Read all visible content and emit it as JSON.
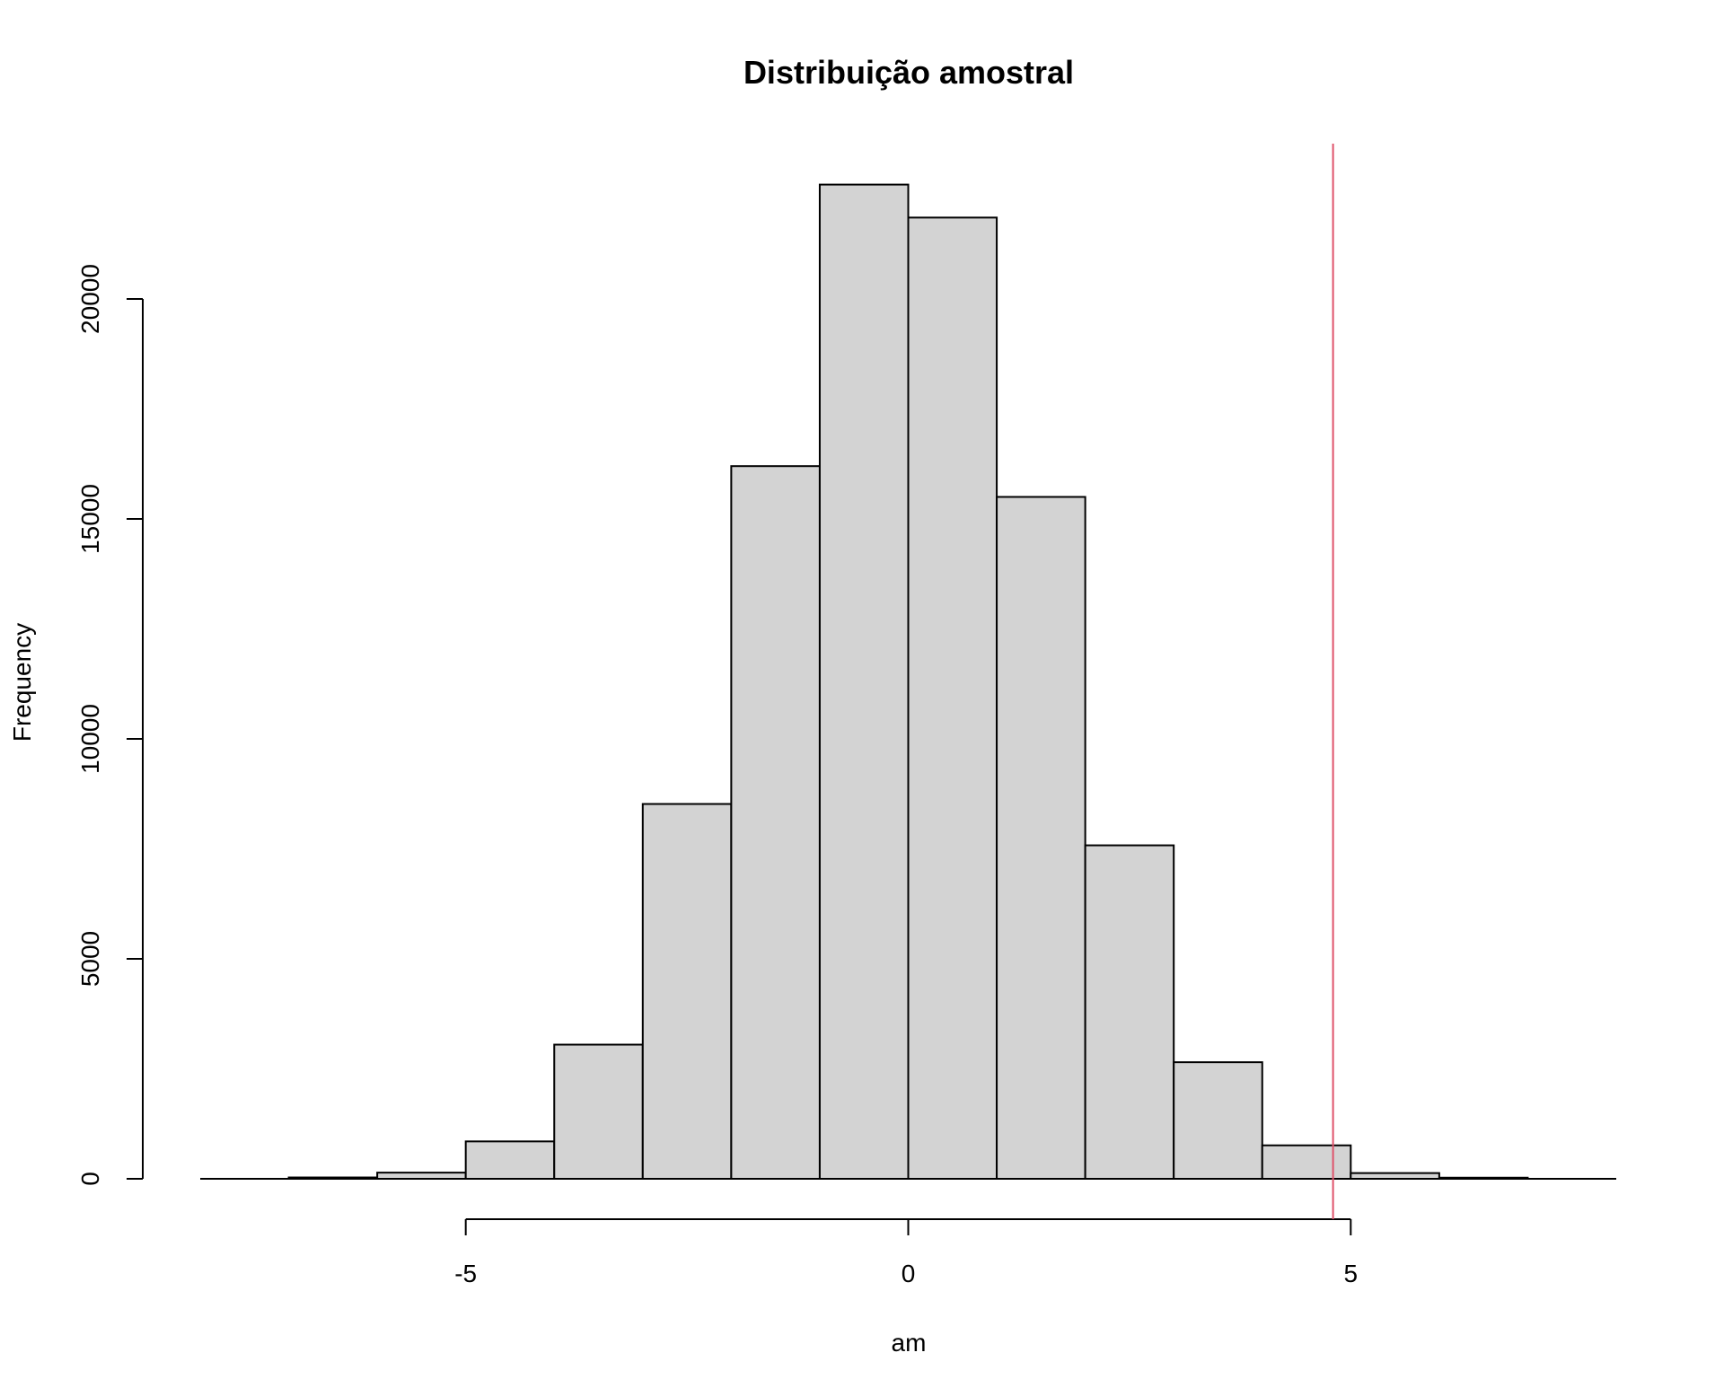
{
  "chart_data": {
    "type": "bar",
    "title": "Distribuição amostral",
    "xlabel": "am",
    "ylabel": "Frequency",
    "bins": [
      {
        "start": -7,
        "end": -6,
        "count": 30
      },
      {
        "start": -6,
        "end": -5,
        "count": 140
      },
      {
        "start": -5,
        "end": -4,
        "count": 850
      },
      {
        "start": -4,
        "end": -3,
        "count": 3050
      },
      {
        "start": -3,
        "end": -2,
        "count": 8520
      },
      {
        "start": -2,
        "end": -1,
        "count": 16200
      },
      {
        "start": -1,
        "end": 0,
        "count": 22600
      },
      {
        "start": 0,
        "end": 1,
        "count": 21850
      },
      {
        "start": 1,
        "end": 2,
        "count": 15500
      },
      {
        "start": 2,
        "end": 3,
        "count": 7580
      },
      {
        "start": 3,
        "end": 4,
        "count": 2650
      },
      {
        "start": 4,
        "end": 5,
        "count": 760
      },
      {
        "start": 5,
        "end": 6,
        "count": 130
      },
      {
        "start": 6,
        "end": 7,
        "count": 25
      }
    ],
    "x_ticks": [
      -5,
      0,
      5
    ],
    "y_ticks": [
      0,
      5000,
      10000,
      15000,
      20000
    ],
    "xlim": [
      -8,
      8
    ],
    "ylim": [
      0,
      22600
    ],
    "bar_color": "#d3d3d3",
    "reference_line": {
      "x": 4.8,
      "color": "#df536b"
    },
    "grid": false
  }
}
